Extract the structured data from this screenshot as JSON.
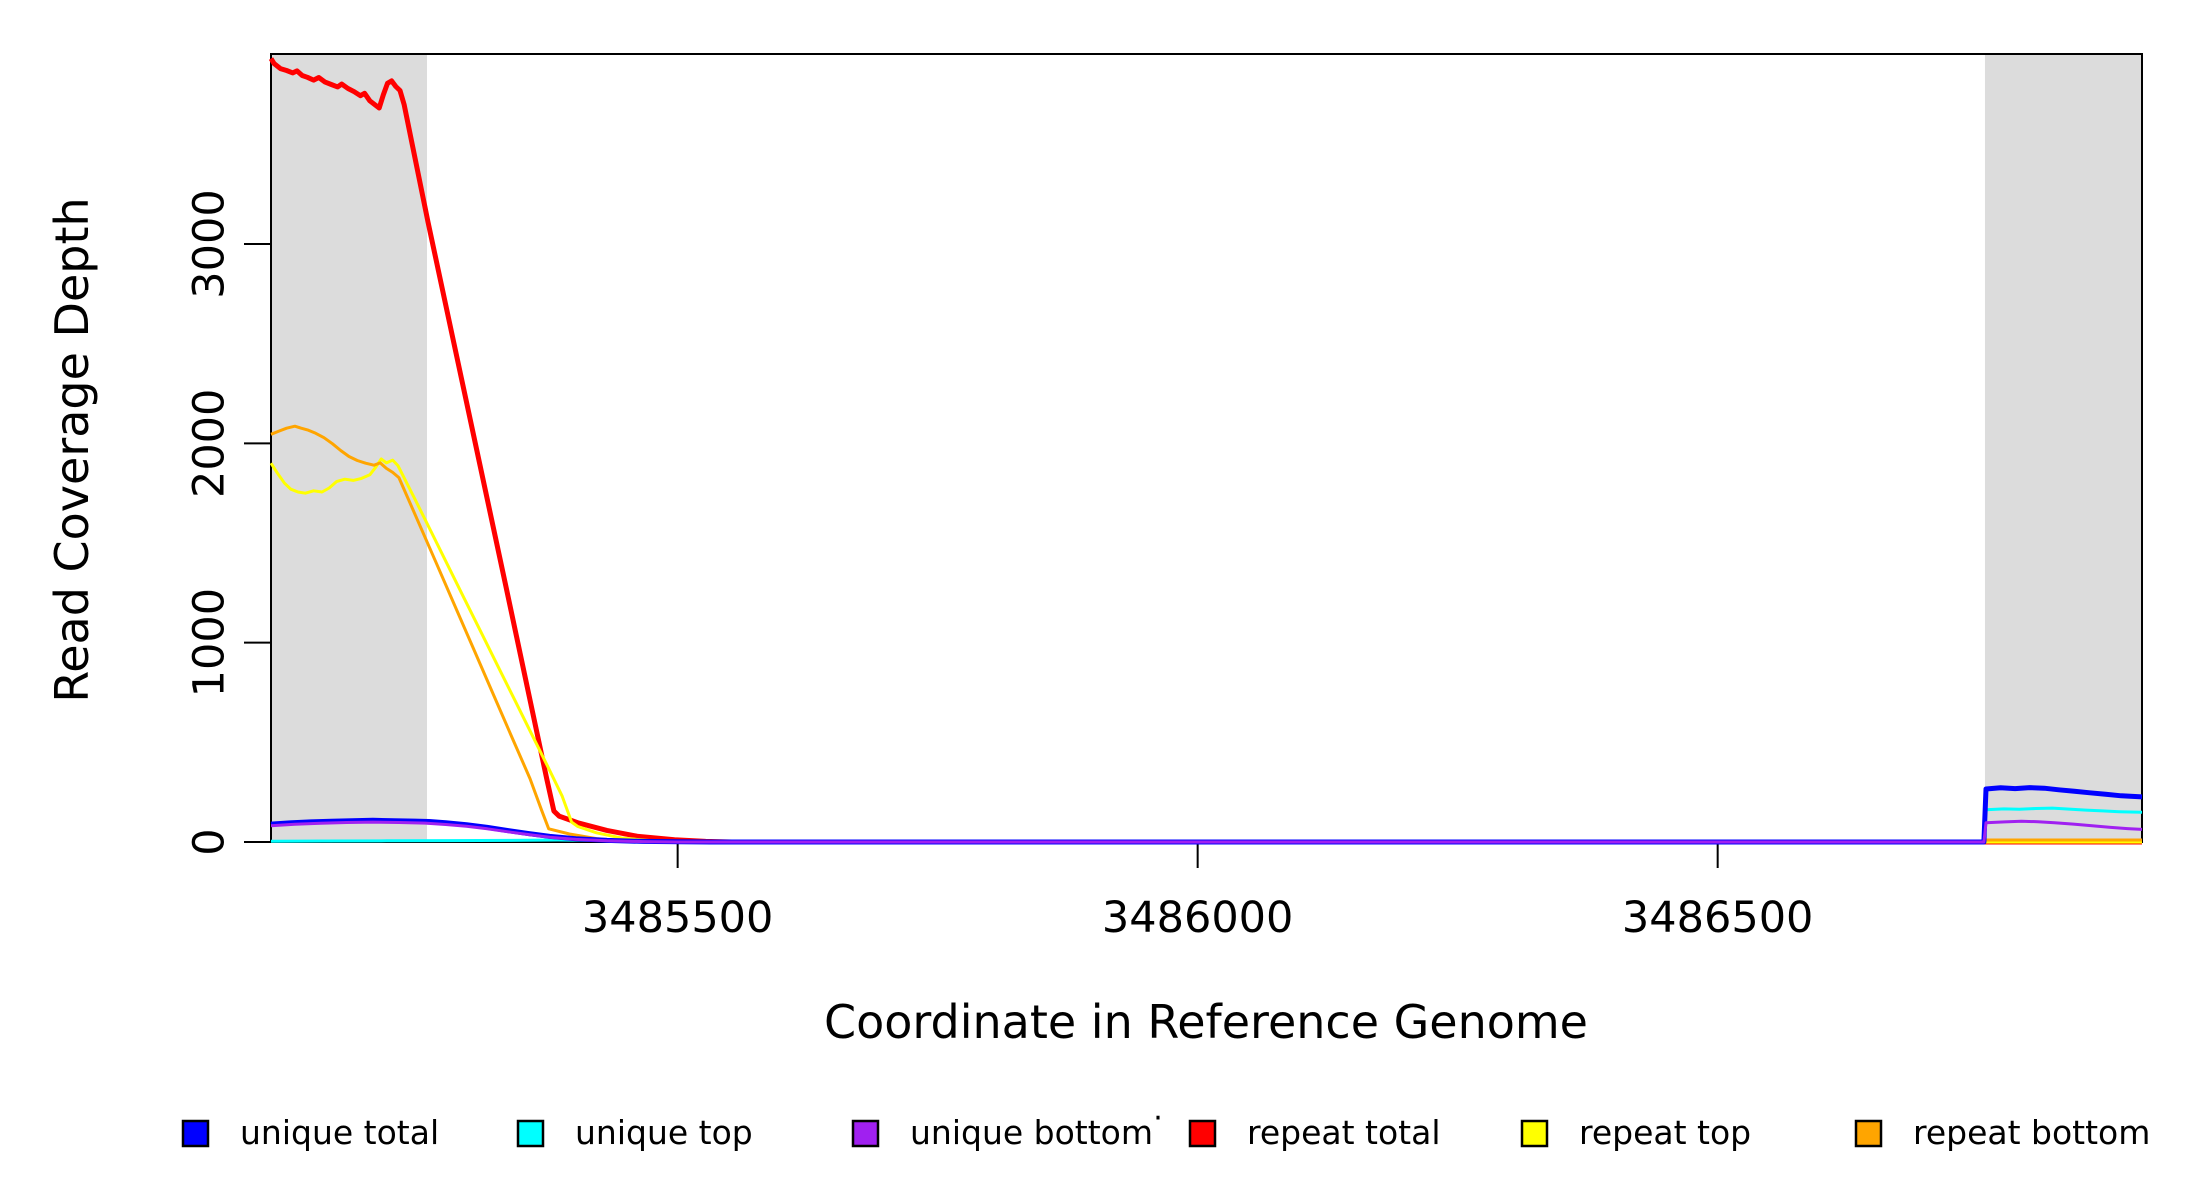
{
  "figure": {
    "background": "#ffffff",
    "x_title": "Coordinate in Reference Genome",
    "y_title": "Read Coverage Depth"
  },
  "chart_data": {
    "type": "line",
    "title": "",
    "xlabel": "Coordinate in Reference Genome",
    "ylabel": "Read Coverage Depth",
    "xlim": [
      3485109,
      3486908
    ],
    "ylim": [
      0,
      3953
    ],
    "grid": false,
    "legend_position": "bottom",
    "x_ticks": [
      3485500,
      3486000,
      3486500
    ],
    "x_tick_labels": [
      "3485500",
      "3486000",
      "3486500"
    ],
    "y_ticks": [
      0,
      1000,
      2000,
      3000
    ],
    "y_tick_labels": [
      "0",
      "1000",
      "2000",
      "3000"
    ],
    "highlight_regions": [
      {
        "name": "left-repeat-region",
        "x0": 3485109,
        "x1": 3485259,
        "color": "#dcdcdc"
      },
      {
        "name": "right-repeat-region",
        "x0": 3486757,
        "x1": 3486908,
        "color": "#dcdcdc"
      }
    ],
    "series": [
      {
        "name": "repeat total",
        "color": "#FF0000",
        "width": 5,
        "points": [
          [
            3485109,
            3930
          ],
          [
            3485112,
            3905
          ],
          [
            3485118,
            3880
          ],
          [
            3485124,
            3870
          ],
          [
            3485130,
            3858
          ],
          [
            3485134,
            3868
          ],
          [
            3485139,
            3845
          ],
          [
            3485144,
            3836
          ],
          [
            3485150,
            3822
          ],
          [
            3485155,
            3835
          ],
          [
            3485161,
            3812
          ],
          [
            3485167,
            3800
          ],
          [
            3485173,
            3788
          ],
          [
            3485177,
            3802
          ],
          [
            3485183,
            3780
          ],
          [
            3485189,
            3764
          ],
          [
            3485195,
            3744
          ],
          [
            3485199,
            3756
          ],
          [
            3485204,
            3718
          ],
          [
            3485209,
            3698
          ],
          [
            3485213,
            3682
          ],
          [
            3485217,
            3748
          ],
          [
            3485221,
            3806
          ],
          [
            3485225,
            3818
          ],
          [
            3485229,
            3790
          ],
          [
            3485233,
            3770
          ],
          [
            3485237,
            3700
          ],
          [
            3485260,
            3110
          ],
          [
            3485285,
            2500
          ],
          [
            3485310,
            1890
          ],
          [
            3485335,
            1280
          ],
          [
            3485360,
            665
          ],
          [
            3485374,
            320
          ],
          [
            3485381,
            155
          ],
          [
            3485386,
            130
          ],
          [
            3485405,
            95
          ],
          [
            3485432,
            58
          ],
          [
            3485462,
            28
          ],
          [
            3485497,
            11
          ],
          [
            3485527,
            3
          ],
          [
            3485552,
            0
          ],
          [
            3486757,
            0
          ],
          [
            3486908,
            0
          ]
        ]
      },
      {
        "name": "repeat top",
        "color": "#FFFF00",
        "width": 3,
        "points": [
          [
            3485109,
            1900
          ],
          [
            3485115,
            1852
          ],
          [
            3485122,
            1800
          ],
          [
            3485128,
            1770
          ],
          [
            3485135,
            1756
          ],
          [
            3485142,
            1750
          ],
          [
            3485150,
            1762
          ],
          [
            3485158,
            1756
          ],
          [
            3485165,
            1776
          ],
          [
            3485172,
            1808
          ],
          [
            3485180,
            1820
          ],
          [
            3485188,
            1814
          ],
          [
            3485196,
            1824
          ],
          [
            3485204,
            1842
          ],
          [
            3485210,
            1882
          ],
          [
            3485215,
            1922
          ],
          [
            3485220,
            1902
          ],
          [
            3485226,
            1916
          ],
          [
            3485231,
            1888
          ],
          [
            3485247,
            1724
          ],
          [
            3485263,
            1556
          ],
          [
            3485279,
            1388
          ],
          [
            3485295,
            1220
          ],
          [
            3485311,
            1052
          ],
          [
            3485327,
            884
          ],
          [
            3485343,
            716
          ],
          [
            3485359,
            548
          ],
          [
            3485375,
            380
          ],
          [
            3485389,
            230
          ],
          [
            3485398,
            100
          ],
          [
            3485404,
            78
          ],
          [
            3485422,
            46
          ],
          [
            3485446,
            20
          ],
          [
            3485474,
            7
          ],
          [
            3485505,
            0
          ],
          [
            3486757,
            0
          ],
          [
            3486908,
            0
          ]
        ]
      },
      {
        "name": "repeat bottom",
        "color": "#FFA500",
        "width": 3,
        "points": [
          [
            3485109,
            2045
          ],
          [
            3485116,
            2060
          ],
          [
            3485124,
            2076
          ],
          [
            3485132,
            2086
          ],
          [
            3485138,
            2076
          ],
          [
            3485145,
            2066
          ],
          [
            3485152,
            2050
          ],
          [
            3485160,
            2028
          ],
          [
            3485168,
            1998
          ],
          [
            3485176,
            1964
          ],
          [
            3485184,
            1934
          ],
          [
            3485192,
            1914
          ],
          [
            3485200,
            1900
          ],
          [
            3485208,
            1890
          ],
          [
            3485214,
            1902
          ],
          [
            3485220,
            1874
          ],
          [
            3485226,
            1854
          ],
          [
            3485232,
            1828
          ],
          [
            3485250,
            1614
          ],
          [
            3485268,
            1398
          ],
          [
            3485286,
            1182
          ],
          [
            3485304,
            966
          ],
          [
            3485322,
            750
          ],
          [
            3485340,
            534
          ],
          [
            3485358,
            318
          ],
          [
            3485369,
            162
          ],
          [
            3485376,
            66
          ],
          [
            3485396,
            40
          ],
          [
            3485422,
            17
          ],
          [
            3485452,
            5
          ],
          [
            3485482,
            0
          ],
          [
            3486756,
            0
          ],
          [
            3486758,
            10
          ],
          [
            3486908,
            10
          ]
        ]
      },
      {
        "name": "unique top",
        "color": "#00FFFF",
        "width": 3,
        "points": [
          [
            3485109,
            4
          ],
          [
            3485160,
            5
          ],
          [
            3485220,
            6
          ],
          [
            3485280,
            7
          ],
          [
            3485340,
            8
          ],
          [
            3485385,
            10
          ],
          [
            3485420,
            8
          ],
          [
            3485455,
            4
          ],
          [
            3485490,
            1
          ],
          [
            3485520,
            0
          ],
          [
            3486756,
            0
          ],
          [
            3486758,
            162
          ],
          [
            3486775,
            166
          ],
          [
            3486790,
            164
          ],
          [
            3486806,
            168
          ],
          [
            3486822,
            170
          ],
          [
            3486838,
            165
          ],
          [
            3486854,
            160
          ],
          [
            3486870,
            156
          ],
          [
            3486886,
            152
          ],
          [
            3486908,
            149
          ]
        ]
      },
      {
        "name": "unique total",
        "color": "#0000FF",
        "width": 5,
        "points": [
          [
            3485109,
            90
          ],
          [
            3485127,
            96
          ],
          [
            3485147,
            101
          ],
          [
            3485167,
            104
          ],
          [
            3485187,
            107
          ],
          [
            3485207,
            109
          ],
          [
            3485227,
            107
          ],
          [
            3485247,
            105
          ],
          [
            3485261,
            103
          ],
          [
            3485277,
            97
          ],
          [
            3485297,
            87
          ],
          [
            3485317,
            73
          ],
          [
            3485337,
            57
          ],
          [
            3485357,
            42
          ],
          [
            3485377,
            28
          ],
          [
            3485402,
            16
          ],
          [
            3485432,
            8
          ],
          [
            3485467,
            3
          ],
          [
            3485502,
            1
          ],
          [
            3485532,
            0
          ],
          [
            3486756,
            0
          ],
          [
            3486758,
            266
          ],
          [
            3486772,
            272
          ],
          [
            3486786,
            268
          ],
          [
            3486800,
            273
          ],
          [
            3486814,
            270
          ],
          [
            3486828,
            262
          ],
          [
            3486843,
            255
          ],
          [
            3486858,
            247
          ],
          [
            3486873,
            240
          ],
          [
            3486888,
            232
          ],
          [
            3486908,
            226
          ]
        ]
      },
      {
        "name": "unique bottom",
        "color": "#A020F0",
        "width": 3,
        "points": [
          [
            3485109,
            82
          ],
          [
            3485132,
            89
          ],
          [
            3485157,
            94
          ],
          [
            3485182,
            98
          ],
          [
            3485207,
            100
          ],
          [
            3485232,
            98
          ],
          [
            3485257,
            95
          ],
          [
            3485277,
            88
          ],
          [
            3485297,
            79
          ],
          [
            3485317,
            66
          ],
          [
            3485337,
            51
          ],
          [
            3485357,
            37
          ],
          [
            3485377,
            24
          ],
          [
            3485402,
            13
          ],
          [
            3485432,
            6
          ],
          [
            3485467,
            2
          ],
          [
            3485500,
            0
          ],
          [
            3486756,
            0
          ],
          [
            3486758,
            97
          ],
          [
            3486776,
            101
          ],
          [
            3486792,
            104
          ],
          [
            3486808,
            102
          ],
          [
            3486824,
            97
          ],
          [
            3486842,
            90
          ],
          [
            3486860,
            82
          ],
          [
            3486878,
            73
          ],
          [
            3486894,
            67
          ],
          [
            3486908,
            63
          ]
        ]
      }
    ]
  },
  "legend": {
    "dot": "·",
    "items": [
      {
        "label": "unique total",
        "color": "#0000FF"
      },
      {
        "label": "unique top",
        "color": "#00FFFF"
      },
      {
        "label": "unique bottom",
        "color": "#A020F0"
      },
      {
        "label": "repeat total",
        "color": "#FF0000"
      },
      {
        "label": "repeat top",
        "color": "#FFFF00"
      },
      {
        "label": "repeat bottom",
        "color": "#FFA500"
      }
    ]
  }
}
